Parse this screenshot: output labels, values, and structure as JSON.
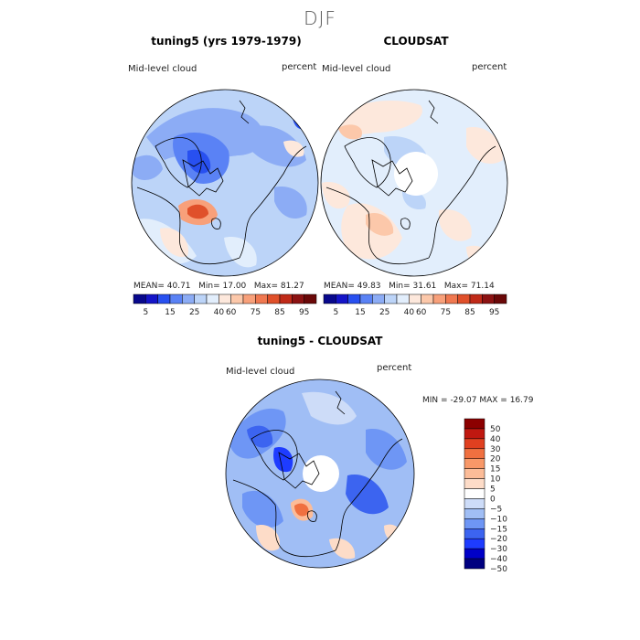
{
  "season": "DJF",
  "colors": {
    "abs_scale": [
      "#08088c",
      "#1414c8",
      "#2850f0",
      "#5a82f5",
      "#8cacf5",
      "#bcd4f8",
      "#e2eefc",
      "#fde8dc",
      "#fcc8aa",
      "#f8a07a",
      "#f07850",
      "#e0502a",
      "#c02a18",
      "#8c1212",
      "#6a0808"
    ],
    "diff_scale": [
      "#000080",
      "#0000c8",
      "#1e3cff",
      "#3c64f0",
      "#6e96f5",
      "#a0bef5",
      "#cddcf8",
      "#ffffff",
      "#fddcc8",
      "#fcbc98",
      "#f89868",
      "#f07040",
      "#e04020",
      "#c01810",
      "#8c0000"
    ],
    "land": "#000000"
  },
  "panels": [
    {
      "title": "tuning5 (yrs 1979-1979)",
      "field": "Mid-level cloud",
      "units": "percent",
      "stats": {
        "mean_label": "MEAN=",
        "mean": "40.71",
        "min_label": "Min=",
        "min": "17.00",
        "max_label": "Max=",
        "max": "81.27"
      }
    },
    {
      "title": "CLOUDSAT",
      "field": "Mid-level cloud",
      "units": "percent",
      "stats": {
        "mean_label": "MEAN=",
        "mean": "49.83",
        "min_label": "Min=",
        "min": "31.61",
        "max_label": "Max=",
        "max": "71.14"
      }
    },
    {
      "title": "tuning5 - CLOUDSAT",
      "field": "Mid-level cloud",
      "units": "percent",
      "stats": {
        "min_label": "MIN =",
        "min": "-29.07",
        "max_label": "MAX =",
        "max": "16.79"
      }
    }
  ],
  "abs_colorbar": {
    "labels": [
      "5",
      "15",
      "25",
      "40",
      "60",
      "75",
      "85",
      "95"
    ]
  },
  "diff_colorbar": {
    "labels": [
      "50",
      "40",
      "30",
      "20",
      "15",
      "10",
      "5",
      "0",
      "−5",
      "−10",
      "−15",
      "−20",
      "−30",
      "−40",
      "−50"
    ]
  }
}
